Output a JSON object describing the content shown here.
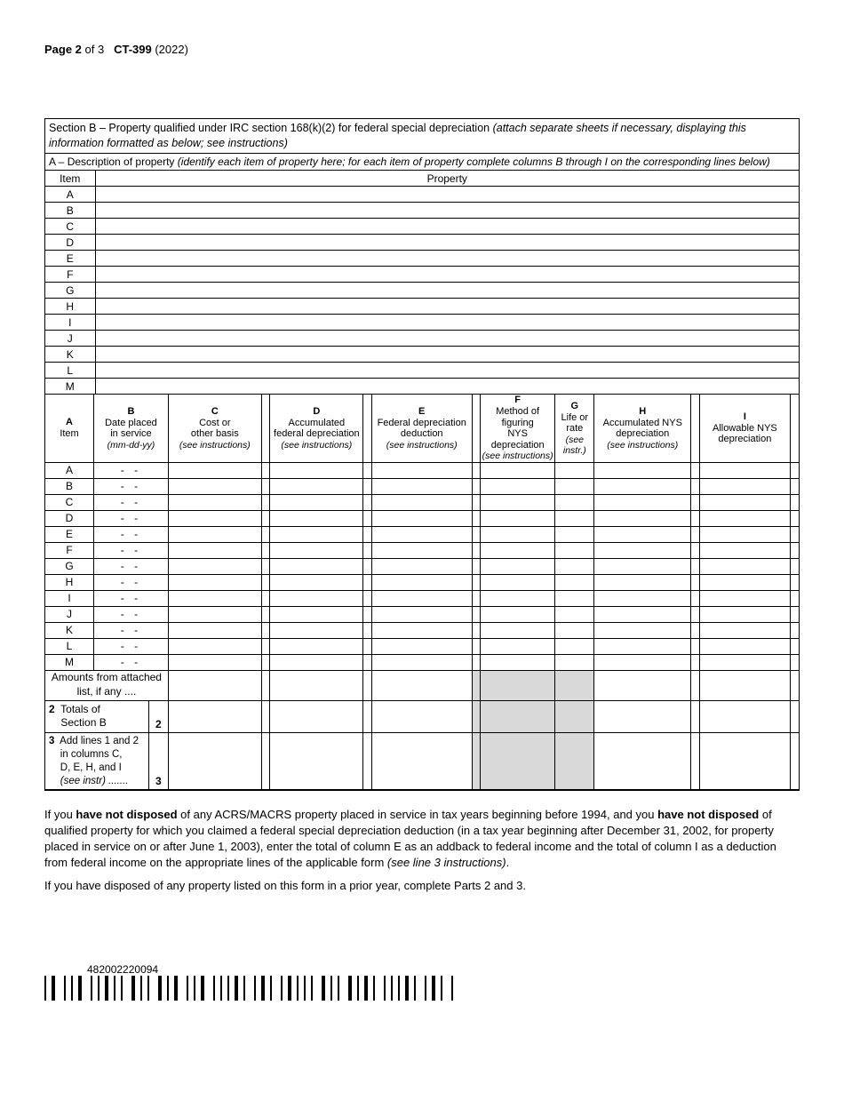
{
  "page_header": {
    "page_label": "Page 2",
    "page_of": "of 3",
    "form_id": "CT-399",
    "year": "(2022)"
  },
  "section_b": {
    "title_bold": "Section B – Property qualified under IRC section 168(k)(2) for federal special depreciation",
    "title_italic": "(attach separate sheets if necessary, displaying this information formatted as below; see instructions)",
    "row_a_bold": "A –",
    "row_a_label": "Description of property",
    "row_a_italic": "(identify each item of property here; for each item of property complete columns B through I on the corresponding lines below)"
  },
  "table1": {
    "header_item": "Item",
    "header_property": "Property",
    "items": [
      "A",
      "B",
      "C",
      "D",
      "E",
      "F",
      "G",
      "H",
      "I",
      "J",
      "K",
      "L",
      "M"
    ]
  },
  "table2": {
    "col_a": {
      "lbl": "A",
      "l1": "Item"
    },
    "col_b": {
      "lbl": "B",
      "l1": "Date placed",
      "l2": "in service",
      "instr": "(mm-dd-yy)"
    },
    "col_c": {
      "lbl": "C",
      "l1": "Cost or",
      "l2": "other basis",
      "instr": "(see instructions)"
    },
    "col_d": {
      "lbl": "D",
      "l1": "Accumulated",
      "l2": "federal depreciation",
      "instr": "(see instructions)"
    },
    "col_e": {
      "lbl": "E",
      "l1": "Federal depreciation",
      "l2": "deduction",
      "instr": "(see instructions)"
    },
    "col_f": {
      "lbl": "F",
      "l1": "Method of figuring",
      "l2": "NYS depreciation",
      "instr": "(see instructions)"
    },
    "col_g": {
      "lbl": "G",
      "l1": "Life or",
      "l2": "rate",
      "instr": "(see instr.)"
    },
    "col_h": {
      "lbl": "H",
      "l1": "Accumulated NYS",
      "l2": "depreciation",
      "instr": "(see instructions)"
    },
    "col_i": {
      "lbl": "I",
      "l1": "Allowable NYS",
      "l2": "depreciation"
    },
    "items": [
      "A",
      "B",
      "C",
      "D",
      "E",
      "F",
      "G",
      "H",
      "I",
      "J",
      "K",
      "L",
      "M"
    ],
    "dash": "-    -",
    "amounts_row": "Amounts from attached list, if any ....",
    "row2_l1": "Totals of",
    "row2_l2": "Section B",
    "row2_num_left": "2",
    "row2_num_right": "2",
    "row3_l1": "Add lines 1 and 2",
    "row3_l2": "in columns C,",
    "row3_l3": "D, E, H, and I",
    "row3_l4": "(see instr) .......",
    "row3_num_left": "3",
    "row3_num_right": "3"
  },
  "para1": {
    "t1": "If you ",
    "b1": "have not disposed",
    "t2": " of any ACRS/MACRS property placed in service in tax years beginning before 1994, and you ",
    "b2": "have not disposed",
    "t3": " of qualified property for which you claimed a federal special depreciation deduction (in a tax year beginning after December 31, 2002, for property placed in service on or after June 1, 2003), enter the total of column E as an addback to federal income and the total of column I as a deduction from federal income on the appropriate lines of the applicable form ",
    "i1": "(see line 3 instructions)",
    "t4": "."
  },
  "para2": "If you have disposed of any property listed on this form in a prior year, complete Parts 2 and 3.",
  "barcode_number": "482002220094",
  "barcode_pattern": "101100101011001010110101001101010011010110010101100101010110100101101001011010101001101010011010110100101010110100101101001"
}
